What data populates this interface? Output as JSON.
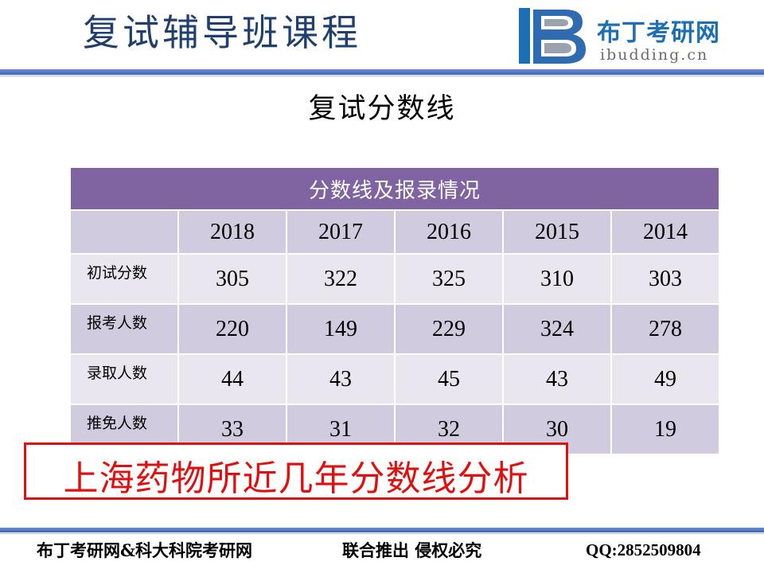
{
  "header": {
    "title": "复试辅导班课程",
    "logo_name": "布丁考研网",
    "logo_domain": "ibudding.cn",
    "logo_icon": "book-b-logo-icon"
  },
  "subtitle": "复试分数线",
  "table": {
    "caption": "分数线及报录情况",
    "years": [
      "2018",
      "2017",
      "2016",
      "2015",
      "2014"
    ],
    "rows": [
      {
        "label": "初试分数",
        "values": [
          "305",
          "322",
          "325",
          "310",
          "303"
        ]
      },
      {
        "label": "报考人数",
        "values": [
          "220",
          "149",
          "229",
          "324",
          "278"
        ]
      },
      {
        "label": "录取人数",
        "values": [
          "44",
          "43",
          "45",
          "43",
          "49"
        ]
      },
      {
        "label": "推免人数",
        "values": [
          "33",
          "31",
          "32",
          "30",
          "19"
        ]
      }
    ]
  },
  "highlight": "上海药物所近几年分数线分析",
  "footer": {
    "left": "布丁考研网&科大科院考研网",
    "middle": "联合推出 侵权必究",
    "right": "QQ:2852509804"
  },
  "colors": {
    "title_text": "#1f3f6e",
    "table_header": "#8064a2",
    "table_row_dark": "#d0cbdf",
    "table_row_light": "#e9e6f0",
    "highlight": "#e01010",
    "rule": "#3f63b8"
  }
}
